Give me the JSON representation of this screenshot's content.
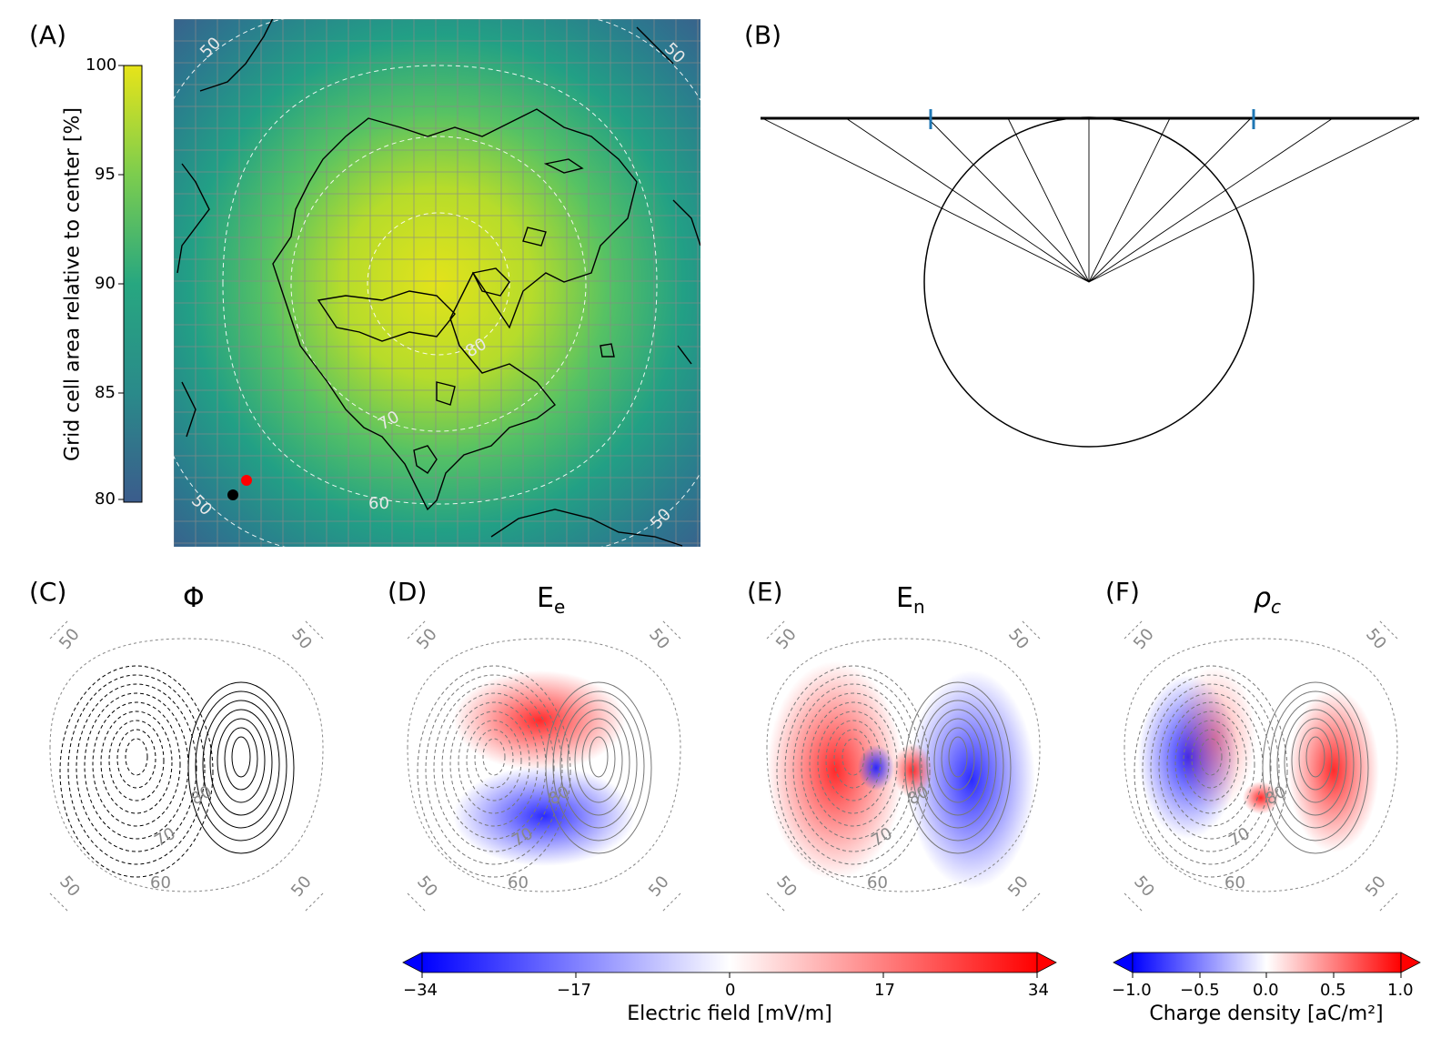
{
  "panels": {
    "A": {
      "label": "(A)",
      "colorbar": {
        "label": "Grid cell area relative to center [%]",
        "ticks": [
          "100",
          "95",
          "90",
          "85",
          "80"
        ],
        "range": [
          80,
          100
        ],
        "colormap": "viridis"
      },
      "lat_labels": [
        "50",
        "50",
        "50",
        "50",
        "60",
        "70",
        "80"
      ],
      "markers": [
        {
          "name": "red-dot",
          "color": "#ff0000"
        },
        {
          "name": "black-dot",
          "color": "#000000"
        }
      ]
    },
    "B": {
      "label": "(B)",
      "tick_color": "#1f77b4"
    },
    "C": {
      "label": "(C)",
      "title": "Φ"
    },
    "D": {
      "label": "(D)",
      "title": "E",
      "title_sub": "e"
    },
    "E": {
      "label": "(E)",
      "title": "E",
      "title_sub": "n"
    },
    "F": {
      "label": "(F)",
      "title": "ρ",
      "title_sub": "c"
    },
    "polar_labels": [
      "50",
      "50",
      "50",
      "50",
      "60",
      "70",
      "80"
    ]
  },
  "colorbars": {
    "electric": {
      "label": "Electric field [mV/m]",
      "ticks": [
        "−34",
        "−17",
        "0",
        "17",
        "34"
      ],
      "range": [
        -34,
        34
      ],
      "colormap": "bwr"
    },
    "charge": {
      "label": "Charge density [aC/m²]",
      "ticks": [
        "−1.0",
        "−0.5",
        "0.0",
        "0.5",
        "1.0"
      ],
      "range": [
        -1.0,
        1.0
      ],
      "colormap": "bwr"
    }
  },
  "colors": {
    "neg": "#0000ff",
    "pos": "#ff0000",
    "viridis_low": "#3b5c8c",
    "viridis_high": "#e7e419"
  }
}
